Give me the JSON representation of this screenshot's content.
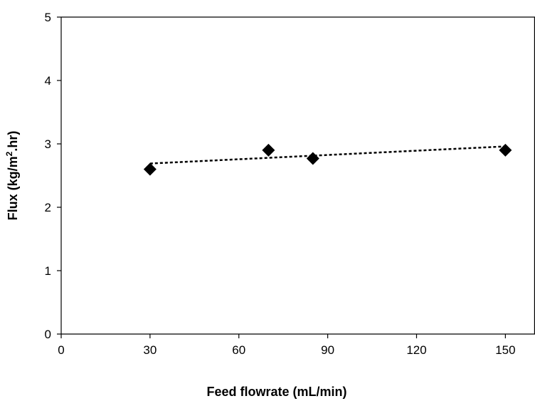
{
  "chart_data": {
    "type": "scatter",
    "title": "",
    "xlabel": "Feed flowrate (mL/min)",
    "ylabel_main": "Flux (kg/m",
    "ylabel_sup": "2",
    "ylabel_tail": ".hr)",
    "xlim": [
      0,
      160
    ],
    "ylim": [
      0,
      5
    ],
    "x_ticks": [
      0,
      30,
      60,
      90,
      120,
      150
    ],
    "y_ticks": [
      0,
      1,
      2,
      3,
      4,
      5
    ],
    "series": [
      {
        "marker": "diamond",
        "color": "#000000",
        "points": [
          {
            "x": 30,
            "y": 2.6
          },
          {
            "x": 70,
            "y": 2.9
          },
          {
            "x": 85,
            "y": 2.77
          },
          {
            "x": 150,
            "y": 2.9
          }
        ]
      }
    ],
    "trendline": {
      "style": "dotted",
      "color": "#000000",
      "x": [
        30,
        150
      ],
      "y": [
        2.69,
        2.96
      ]
    },
    "grid": false,
    "legend": "none"
  }
}
